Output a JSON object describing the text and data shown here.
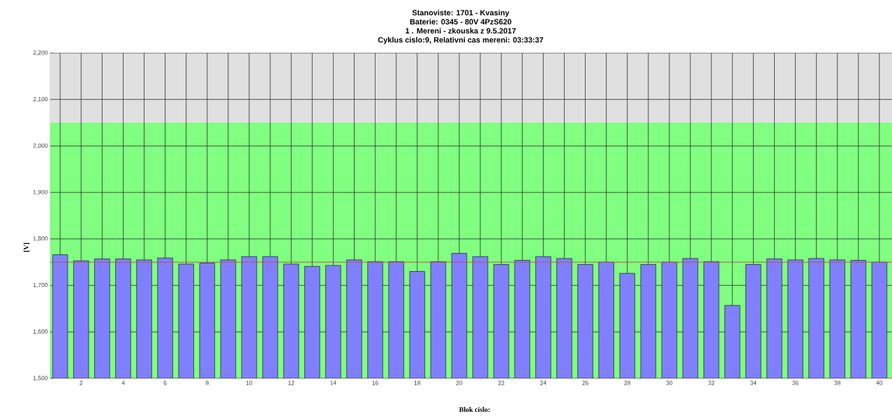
{
  "chart_data": {
    "type": "bar",
    "title": "Stanoviste: 1701 - Kvasiny",
    "subtitle": "Baterie: 0345 - 80V 4PzS620",
    "annotations": [
      "1 . Mereni - zkouska z 9.5.2017",
      "Cyklus cislo:9, Relativni cas mereni: 03:33:37"
    ],
    "xlabel": "Blok cislo:",
    "ylabel": "[V]",
    "categories": [
      null,
      "2",
      null,
      "4",
      null,
      "6",
      null,
      "8",
      null,
      "10",
      null,
      "12",
      null,
      "14",
      null,
      "16",
      null,
      "18",
      null,
      "20",
      null,
      "22",
      null,
      "24",
      null,
      "26",
      null,
      "28",
      null,
      "30",
      null,
      "32",
      null,
      "34",
      null,
      "36",
      null,
      "38",
      null,
      "40"
    ],
    "values": [
      1766,
      1753,
      1757,
      1757,
      1755,
      1759,
      1746,
      1748,
      1755,
      1762,
      1762,
      1746,
      1741,
      1743,
      1755,
      1751,
      1751,
      1730,
      1751,
      1769,
      1762,
      1745,
      1754,
      1762,
      1758,
      1745,
      1750,
      1726,
      1745,
      1750,
      1758,
      1751,
      1657,
      1745,
      1757,
      1755,
      1758,
      1755,
      1754,
      1750
    ],
    "color": "#8080ff",
    "ylim": [
      1500,
      2200
    ],
    "yticks": [
      {
        "value": 1500,
        "label": "1,500"
      },
      {
        "value": 1600,
        "label": "1,600"
      },
      {
        "value": 1700,
        "label": "1,700"
      },
      {
        "value": 1800,
        "label": "1,800"
      },
      {
        "value": 1900,
        "label": "1,900"
      },
      {
        "value": 2000,
        "label": "2,000"
      },
      {
        "value": 2100,
        "label": "2,100"
      },
      {
        "value": 2200,
        "label": "2,200"
      }
    ],
    "bands": [
      {
        "axis": "y",
        "from": 1500,
        "to": 2050,
        "color": "#80ff80"
      },
      {
        "axis": "y",
        "from": 2050,
        "to": 2200,
        "color": "#e0e0e0"
      }
    ],
    "ref_lines": [
      {
        "axis": "y",
        "value": 1750,
        "color": "#c05050"
      }
    ],
    "grid": true
  }
}
